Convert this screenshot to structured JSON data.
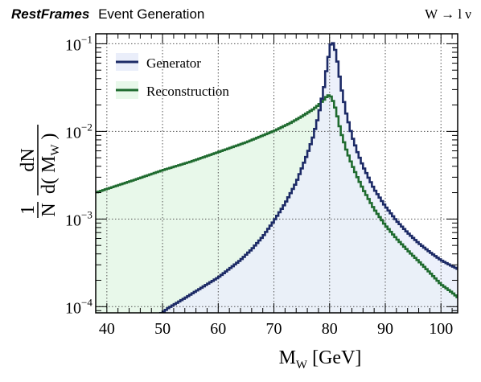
{
  "header": {
    "brand": "RestFrames",
    "subtitle": "Event Generation",
    "process": "W → l ν"
  },
  "colors": {
    "generator_line": "#1c2a66",
    "generator_fill": "#eaeefa",
    "reconstruction_line": "#1f6b2f",
    "reconstruction_fill": "#e8f8ea",
    "grid": "#555555"
  },
  "chart_data": {
    "type": "line",
    "title": "",
    "xlabel": "M",
    "xlabel_sub": "W",
    "xlabel_unit": "[GeV]",
    "ylabel": "1/N dN/d(M_W)",
    "ylabel_parts": {
      "one": "1",
      "N": "N",
      "dN": "dN",
      "d_open": "d( M",
      "sub": "W",
      "close": " )"
    },
    "xlim": [
      38,
      103
    ],
    "ylim": [
      8.5e-05,
      0.13
    ],
    "log_y": true,
    "grid": true,
    "legend_position": "top-left",
    "x_ticks": [
      40,
      50,
      60,
      70,
      80,
      90,
      100
    ],
    "y_ticks": [
      {
        "value": 0.0001,
        "mantissa": "10",
        "exp": "−4"
      },
      {
        "value": 0.001,
        "mantissa": "10",
        "exp": "−3"
      },
      {
        "value": 0.01,
        "mantissa": "10",
        "exp": "−2"
      },
      {
        "value": 0.1,
        "mantissa": "10",
        "exp": "−1"
      }
    ],
    "series": [
      {
        "name": "Generator",
        "points": [
          [
            38,
            7.5e-05
          ],
          [
            48,
            7.5e-05
          ],
          [
            49,
            7.9e-05
          ],
          [
            50,
            8.6e-05
          ],
          [
            51,
            9.6e-05
          ],
          [
            52,
            0.000105
          ],
          [
            54,
            0.000125
          ],
          [
            56,
            0.00015
          ],
          [
            58,
            0.00018
          ],
          [
            60,
            0.000215
          ],
          [
            62,
            0.00027
          ],
          [
            64,
            0.00034
          ],
          [
            66,
            0.00045
          ],
          [
            68,
            0.00063
          ],
          [
            70,
            0.00095
          ],
          [
            72,
            0.0015
          ],
          [
            74,
            0.0026
          ],
          [
            76,
            0.0055
          ],
          [
            77,
            0.0085
          ],
          [
            78,
            0.015
          ],
          [
            79,
            0.032
          ],
          [
            79.6,
            0.06
          ],
          [
            80.2,
            0.098
          ],
          [
            80.5,
            0.105
          ],
          [
            80.9,
            0.092
          ],
          [
            81.5,
            0.058
          ],
          [
            82,
            0.034
          ],
          [
            83,
            0.016
          ],
          [
            84,
            0.009
          ],
          [
            85,
            0.0058
          ],
          [
            86,
            0.004
          ],
          [
            88,
            0.0022
          ],
          [
            90,
            0.0014
          ],
          [
            92,
            0.00096
          ],
          [
            94,
            0.0007
          ],
          [
            96,
            0.00053
          ],
          [
            98,
            0.00042
          ],
          [
            100,
            0.00034
          ],
          [
            102,
            0.00029
          ],
          [
            103,
            0.00027
          ]
        ]
      },
      {
        "name": "Reconstruction",
        "points": [
          [
            38,
            0.002
          ],
          [
            40,
            0.0022
          ],
          [
            45,
            0.0028
          ],
          [
            50,
            0.0036
          ],
          [
            55,
            0.0045
          ],
          [
            60,
            0.0058
          ],
          [
            65,
            0.0075
          ],
          [
            70,
            0.0101
          ],
          [
            73,
            0.0125
          ],
          [
            75,
            0.0148
          ],
          [
            77,
            0.0178
          ],
          [
            78,
            0.02
          ],
          [
            79,
            0.023
          ],
          [
            79.7,
            0.026
          ],
          [
            80.2,
            0.025
          ],
          [
            80.8,
            0.021
          ],
          [
            81.5,
            0.014
          ],
          [
            82,
            0.01
          ],
          [
            83,
            0.0062
          ],
          [
            84,
            0.0042
          ],
          [
            85,
            0.003
          ],
          [
            86,
            0.0022
          ],
          [
            88,
            0.0013
          ],
          [
            90,
            0.00085
          ],
          [
            92,
            0.0006
          ],
          [
            94,
            0.00044
          ],
          [
            96,
            0.00033
          ],
          [
            98,
            0.000245
          ],
          [
            100,
            0.00018
          ],
          [
            102,
            0.000145
          ],
          [
            103,
            0.000128
          ]
        ]
      }
    ]
  }
}
